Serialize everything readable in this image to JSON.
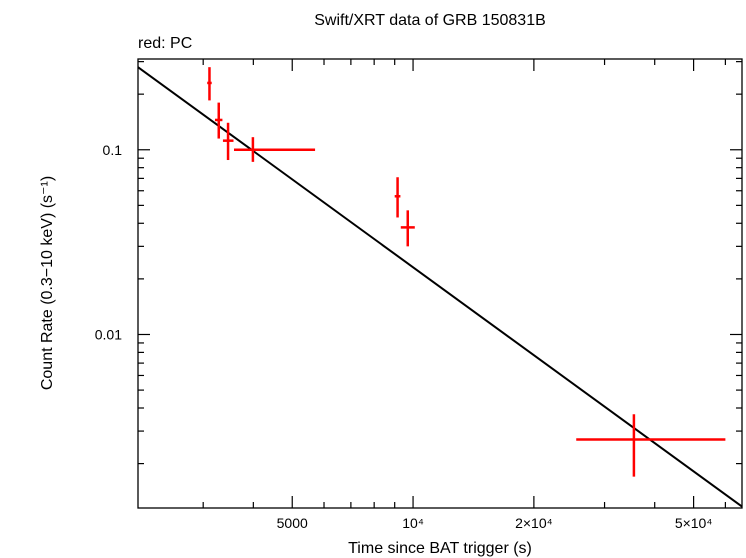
{
  "chart_data": {
    "type": "scatter",
    "title": "Swift/XRT data of GRB 150831B",
    "subtitle": "red: PC",
    "xlabel": "Time since BAT trigger (s)",
    "ylabel": "Count Rate (0.3−10 keV) (s⁻¹)",
    "xscale": "log",
    "yscale": "log",
    "xlim": [
      2064,
      66000
    ],
    "ylim": [
      0.00115,
      0.31
    ],
    "x_ticks": [
      {
        "value": 5000,
        "label": "5000"
      },
      {
        "value": 10000,
        "label": "10⁴"
      },
      {
        "value": 20000,
        "label": "2×10⁴"
      },
      {
        "value": 50000,
        "label": "5×10⁴"
      }
    ],
    "y_ticks": [
      {
        "value": 0.1,
        "label": "0.1"
      },
      {
        "value": 0.01,
        "label": "0.01"
      }
    ],
    "series": [
      {
        "name": "PC",
        "color": "#ff0000",
        "points": [
          {
            "x": 3110,
            "xmin": 3070,
            "xmax": 3150,
            "y": 0.23,
            "ymin": 0.185,
            "ymax": 0.28
          },
          {
            "x": 3280,
            "xmin": 3210,
            "xmax": 3350,
            "y": 0.145,
            "ymin": 0.115,
            "ymax": 0.18
          },
          {
            "x": 3460,
            "xmin": 3360,
            "xmax": 3570,
            "y": 0.112,
            "ymin": 0.088,
            "ymax": 0.14
          },
          {
            "x": 3990,
            "xmin": 3580,
            "xmax": 5700,
            "y": 0.1,
            "ymin": 0.086,
            "ymax": 0.117
          },
          {
            "x": 9150,
            "xmin": 9000,
            "xmax": 9300,
            "y": 0.056,
            "ymin": 0.043,
            "ymax": 0.071
          },
          {
            "x": 9700,
            "xmin": 9320,
            "xmax": 10100,
            "y": 0.038,
            "ymin": 0.03,
            "ymax": 0.047
          },
          {
            "x": 35500,
            "xmin": 25500,
            "xmax": 60000,
            "y": 0.0027,
            "ymin": 0.0017,
            "ymax": 0.0037
          }
        ]
      }
    ],
    "model": {
      "color": "#000000",
      "x": [
        2064,
        66000
      ],
      "y": [
        0.28,
        0.00117
      ]
    },
    "grid": false,
    "legend": "none"
  }
}
